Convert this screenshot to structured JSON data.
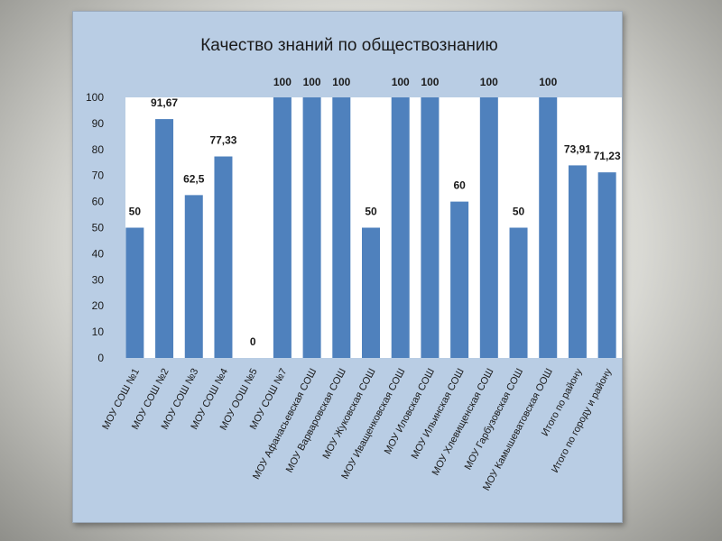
{
  "chart_data": {
    "type": "bar",
    "title": "Качество знаний по обществознанию",
    "xlabel": "",
    "ylabel": "",
    "ylim": [
      0,
      100
    ],
    "yticks": [
      0,
      10,
      20,
      30,
      40,
      50,
      60,
      70,
      80,
      90,
      100
    ],
    "grid": false,
    "legend": "none",
    "bar_color": "#4f81bd",
    "plot_background": "#ffffff",
    "panel_background": "#b9cde4",
    "categories": [
      "МОУ СОШ №1",
      "МОУ СОШ №2",
      "МОУ СОШ №3",
      "МОУ СОШ №4",
      "МОУ ООШ №5",
      "МОУ СОШ №7",
      "МОУ Афанасьевская СОШ",
      "МОУ Варваровская СОШ",
      "МОУ Жуковская СОШ",
      "МОУ Иващенковская СОШ",
      "МОУ Иловская СОШ",
      "МОУ Ильинская СОШ",
      "МОУ Хлевищенская СОШ",
      "МОУ Гарбузовская СОШ",
      "МОУ Камышеватовская ООШ",
      "Итого по району",
      "Итого по городу и району"
    ],
    "values": [
      50,
      91.67,
      62.5,
      77.33,
      0,
      100,
      100,
      100,
      50,
      100,
      100,
      60,
      100,
      50,
      100,
      73.91,
      71.23
    ],
    "data_labels": [
      "50",
      "91,67",
      "62,5",
      "77,33",
      "0",
      "100",
      "100",
      "100",
      "50",
      "100",
      "100",
      "60",
      "100",
      "50",
      "100",
      "73,91",
      "71,23"
    ]
  }
}
